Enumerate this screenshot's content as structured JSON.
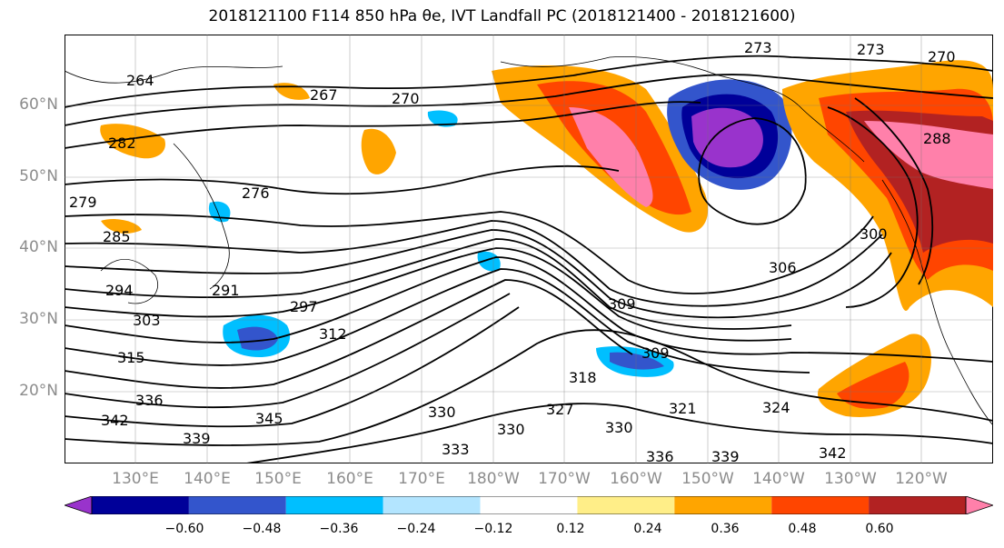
{
  "title": "2018121100 F114 850 hPa θe, IVT Landfall PC (2018121400 - 2018121600)",
  "map": {
    "lat_ticks": [
      "60°N",
      "50°N",
      "40°N",
      "30°N",
      "20°N"
    ],
    "lon_ticks": [
      "130°E",
      "140°E",
      "150°E",
      "160°E",
      "170°E",
      "180°W",
      "170°W",
      "160°W",
      "150°W",
      "140°W",
      "130°W",
      "120°W"
    ],
    "contour_labels": [
      "264",
      "267",
      "270",
      "273",
      "273",
      "270",
      "276",
      "279",
      "282",
      "285",
      "288",
      "291",
      "294",
      "297",
      "300",
      "303",
      "306",
      "309",
      "309",
      "312",
      "315",
      "318",
      "321",
      "324",
      "327",
      "330",
      "330",
      "330",
      "333",
      "336",
      "336",
      "339",
      "339",
      "342",
      "342",
      "345"
    ],
    "fill_colors": {
      "purple": "#9933cc",
      "navy": "#000099",
      "blue": "#3355cc",
      "cyan": "#00bfff",
      "lightblue": "#b3e5ff",
      "yellow": "#ffee88",
      "orange": "#ffa500",
      "redorange": "#ff4500",
      "darkred": "#b22222",
      "pink": "#ff80aa"
    }
  },
  "colorbar": {
    "tick_labels": [
      "−0.60",
      "−0.48",
      "−0.36",
      "−0.24",
      "−0.12",
      "0.12",
      "0.24",
      "0.36",
      "0.48",
      "0.60"
    ],
    "colors": [
      "#9933cc",
      "#000099",
      "#3355cc",
      "#00bfff",
      "#b3e5ff",
      "#ffffff",
      "#ffee88",
      "#ffa500",
      "#ff4500",
      "#b22222",
      "#ff80aa"
    ]
  }
}
